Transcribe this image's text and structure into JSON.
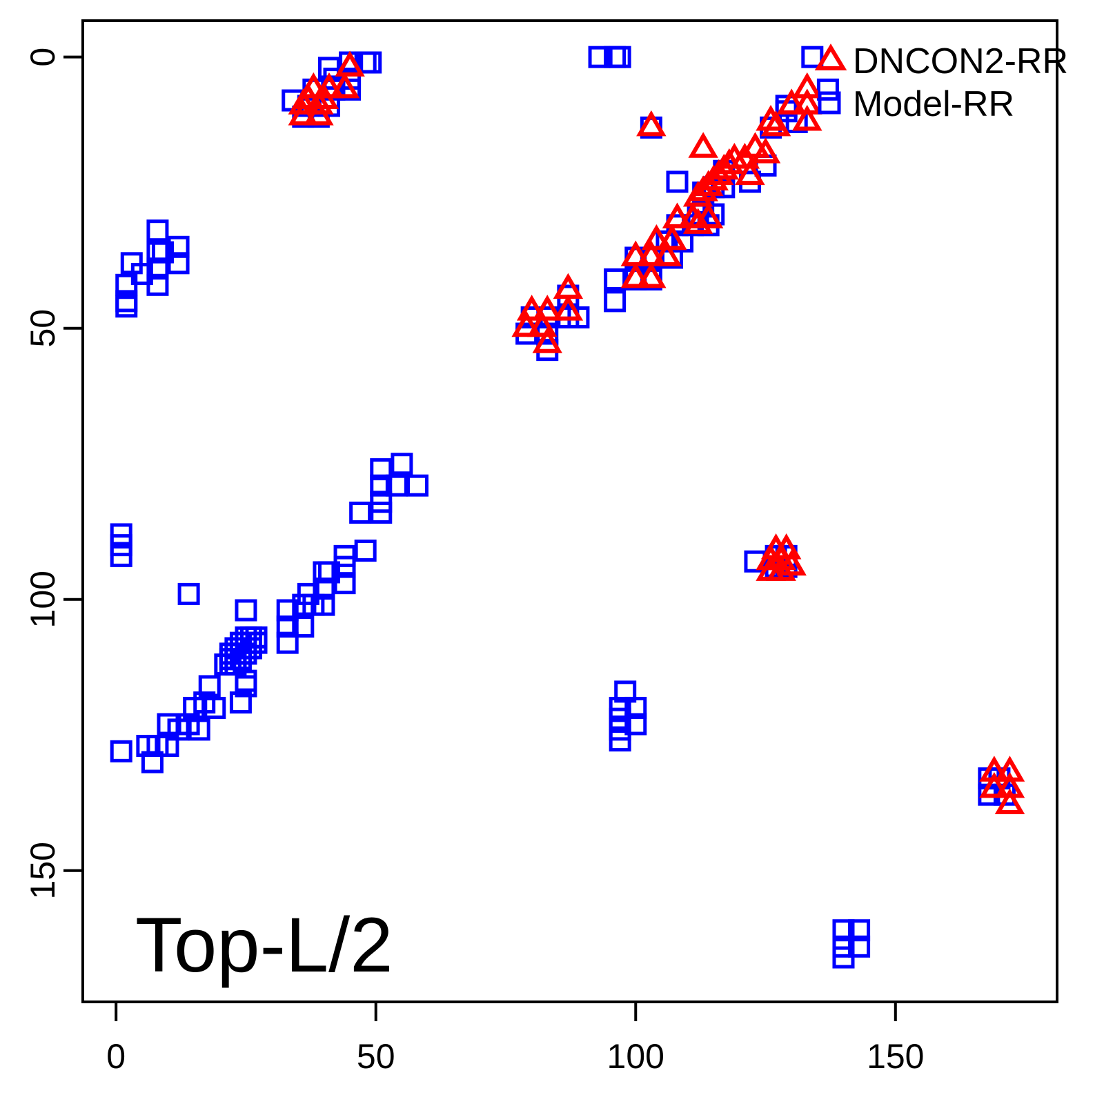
{
  "chart_data": {
    "type": "scatter",
    "title": "",
    "xlabel": "",
    "ylabel": "",
    "annotation": "Top-L/2",
    "grid": false,
    "y_inverted": true,
    "xlim": [
      -6.4,
      181.1
    ],
    "ylim": [
      -6.7,
      174.2
    ],
    "x_ticks": [
      "0",
      "50",
      "100",
      "150"
    ],
    "x_tick_values": [
      0,
      50,
      100,
      150
    ],
    "y_ticks": [
      "0",
      "50",
      "100",
      "150"
    ],
    "y_tick_values": [
      0,
      50,
      100,
      150
    ],
    "legend_position": "top-right",
    "legend": [
      {
        "label": "DNCON2-RR",
        "marker": "triangle",
        "color": "#ff0000"
      },
      {
        "label": "Model-RR",
        "marker": "square",
        "color": "#0000ff"
      }
    ],
    "series": [
      {
        "name": "Model-RR",
        "marker": "square",
        "color": "#0000ff",
        "points": [
          [
            41,
            2
          ],
          [
            45,
            1
          ],
          [
            48,
            1
          ],
          [
            49,
            1
          ],
          [
            42,
            4
          ],
          [
            45,
            4
          ],
          [
            38,
            6
          ],
          [
            42,
            6
          ],
          [
            45,
            6
          ],
          [
            34,
            8
          ],
          [
            37,
            9
          ],
          [
            41,
            9
          ],
          [
            36,
            11
          ],
          [
            39,
            11
          ],
          [
            93,
            0
          ],
          [
            96,
            0
          ],
          [
            97,
            0
          ],
          [
            134,
            0
          ],
          [
            137,
            6
          ],
          [
            129,
            9
          ],
          [
            129,
            10
          ],
          [
            131,
            12
          ],
          [
            126,
            13
          ],
          [
            125,
            20
          ],
          [
            122,
            23
          ],
          [
            117,
            21
          ],
          [
            115,
            24
          ],
          [
            117,
            24
          ],
          [
            113,
            25
          ],
          [
            113,
            27
          ],
          [
            108,
            23
          ],
          [
            112,
            29
          ],
          [
            115,
            29
          ],
          [
            108,
            31
          ],
          [
            111,
            31
          ],
          [
            114,
            31
          ],
          [
            106,
            34
          ],
          [
            109,
            34
          ],
          [
            100,
            37
          ],
          [
            103,
            37
          ],
          [
            107,
            37
          ],
          [
            96,
            41
          ],
          [
            100,
            41
          ],
          [
            103,
            41
          ],
          [
            96,
            45
          ],
          [
            87,
            44
          ],
          [
            80,
            48
          ],
          [
            83,
            48
          ],
          [
            87,
            48
          ],
          [
            89,
            48
          ],
          [
            79,
            51
          ],
          [
            83,
            51
          ],
          [
            83,
            54
          ],
          [
            103,
            13
          ],
          [
            8,
            32
          ],
          [
            8,
            36
          ],
          [
            9,
            36
          ],
          [
            12,
            35
          ],
          [
            12,
            38
          ],
          [
            8,
            39
          ],
          [
            3,
            38
          ],
          [
            5,
            40
          ],
          [
            8,
            42
          ],
          [
            2,
            42
          ],
          [
            2,
            45
          ],
          [
            2,
            46
          ],
          [
            1,
            88
          ],
          [
            1,
            90
          ],
          [
            1,
            92
          ],
          [
            55,
            75
          ],
          [
            51,
            76
          ],
          [
            58,
            79
          ],
          [
            54,
            79
          ],
          [
            51,
            79
          ],
          [
            51,
            82
          ],
          [
            51,
            84
          ],
          [
            47,
            84
          ],
          [
            14,
            99
          ],
          [
            48,
            91
          ],
          [
            44,
            92
          ],
          [
            44,
            94
          ],
          [
            40,
            95
          ],
          [
            41,
            95
          ],
          [
            44,
            97
          ],
          [
            40,
            98
          ],
          [
            37,
            99
          ],
          [
            40,
            101
          ],
          [
            38,
            101
          ],
          [
            36,
            101
          ],
          [
            33,
            102
          ],
          [
            25,
            102
          ],
          [
            36,
            105
          ],
          [
            33,
            105
          ],
          [
            33,
            108
          ],
          [
            25,
            107
          ],
          [
            26,
            107
          ],
          [
            27,
            107
          ],
          [
            24,
            108
          ],
          [
            25,
            108
          ],
          [
            26,
            108
          ],
          [
            27,
            108
          ],
          [
            23,
            109
          ],
          [
            24,
            109
          ],
          [
            25,
            109
          ],
          [
            26,
            109
          ],
          [
            22,
            110
          ],
          [
            23,
            110
          ],
          [
            24,
            110
          ],
          [
            25,
            110
          ],
          [
            22,
            111
          ],
          [
            23,
            111
          ],
          [
            24,
            111
          ],
          [
            21,
            112
          ],
          [
            22,
            112
          ],
          [
            23,
            112
          ],
          [
            25,
            115
          ],
          [
            25,
            116
          ],
          [
            24,
            119
          ],
          [
            18,
            116
          ],
          [
            17,
            119
          ],
          [
            19,
            120
          ],
          [
            15,
            120
          ],
          [
            14,
            123
          ],
          [
            16,
            124
          ],
          [
            10,
            123
          ],
          [
            12,
            124
          ],
          [
            6,
            127
          ],
          [
            8,
            127
          ],
          [
            10,
            127
          ],
          [
            1,
            128
          ],
          [
            7,
            130
          ],
          [
            123,
            93
          ],
          [
            127,
            92
          ],
          [
            129,
            92
          ],
          [
            127,
            94
          ],
          [
            129,
            94
          ],
          [
            98,
            117
          ],
          [
            97,
            120
          ],
          [
            100,
            120
          ],
          [
            97,
            122
          ],
          [
            100,
            123
          ],
          [
            97,
            124
          ],
          [
            97,
            126
          ],
          [
            168,
            133
          ],
          [
            170,
            133
          ],
          [
            168,
            136
          ],
          [
            171,
            136
          ],
          [
            140,
            161
          ],
          [
            143,
            161
          ],
          [
            140,
            164
          ],
          [
            143,
            164
          ],
          [
            140,
            166
          ]
        ]
      },
      {
        "name": "DNCON2-RR",
        "marker": "triangle",
        "color": "#ff0000",
        "points": [
          [
            45,
            2
          ],
          [
            38,
            6
          ],
          [
            41,
            6
          ],
          [
            44,
            6
          ],
          [
            37,
            8
          ],
          [
            40,
            8
          ],
          [
            36,
            9
          ],
          [
            39,
            9
          ],
          [
            36,
            11
          ],
          [
            39,
            11
          ],
          [
            133,
            6
          ],
          [
            130,
            9
          ],
          [
            133,
            9
          ],
          [
            133,
            12
          ],
          [
            126,
            12
          ],
          [
            127,
            13
          ],
          [
            123,
            17
          ],
          [
            125,
            18
          ],
          [
            121,
            19
          ],
          [
            119,
            19
          ],
          [
            118,
            20
          ],
          [
            117,
            21
          ],
          [
            116,
            22
          ],
          [
            115,
            23
          ],
          [
            114,
            24
          ],
          [
            113,
            25
          ],
          [
            112,
            26
          ],
          [
            122,
            22
          ],
          [
            103,
            13
          ],
          [
            113,
            17
          ],
          [
            108,
            30
          ],
          [
            111,
            30
          ],
          [
            114,
            30
          ],
          [
            112,
            31
          ],
          [
            104,
            34
          ],
          [
            107,
            34
          ],
          [
            100,
            37
          ],
          [
            103,
            37
          ],
          [
            106,
            37
          ],
          [
            100,
            41
          ],
          [
            103,
            41
          ],
          [
            87,
            43
          ],
          [
            80,
            47
          ],
          [
            83,
            47
          ],
          [
            87,
            47
          ],
          [
            79,
            50
          ],
          [
            82,
            50
          ],
          [
            83,
            53
          ],
          [
            127,
            91
          ],
          [
            129,
            91
          ],
          [
            126,
            93
          ],
          [
            128,
            93
          ],
          [
            126,
            95
          ],
          [
            128,
            95
          ],
          [
            130,
            94
          ],
          [
            169,
            132
          ],
          [
            172,
            132
          ],
          [
            169,
            135
          ],
          [
            172,
            135
          ],
          [
            172,
            138
          ]
        ]
      }
    ]
  }
}
